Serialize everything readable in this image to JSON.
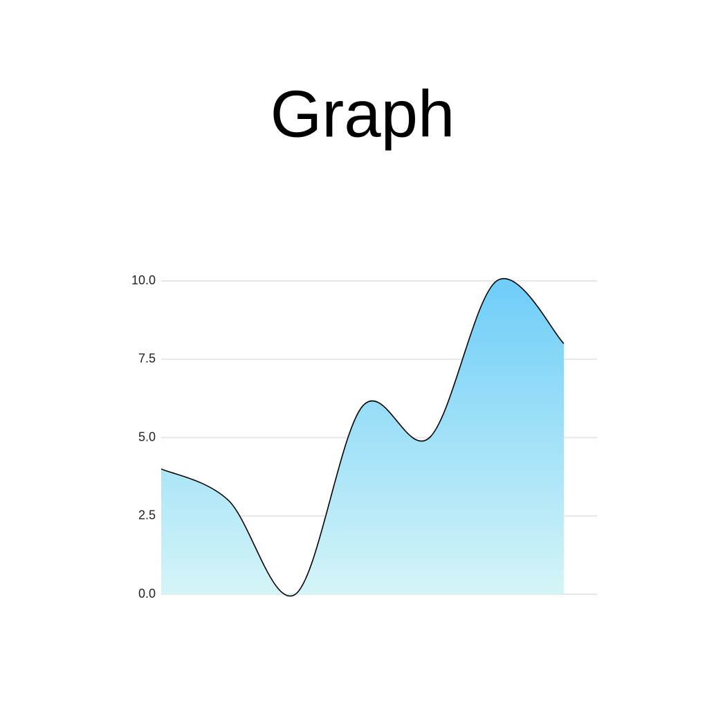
{
  "chart_data": {
    "type": "area",
    "title": "Graph",
    "categories": [
      null,
      null,
      null,
      null,
      null,
      null,
      null
    ],
    "values": [
      4,
      3,
      0,
      6,
      5,
      10,
      8
    ],
    "color": "#000000",
    "fill_gradient": [
      "#6ecdf9",
      "#d5f5f7"
    ],
    "ylim": [
      0,
      10
    ],
    "yticks": [
      {
        "value": 0,
        "label": "0.0"
      },
      2.5,
      {
        "value": 5,
        "label": "5.0"
      },
      7.5,
      {
        "value": 10,
        "label": "10.0"
      }
    ],
    "grid": true,
    "smooth": true
  }
}
